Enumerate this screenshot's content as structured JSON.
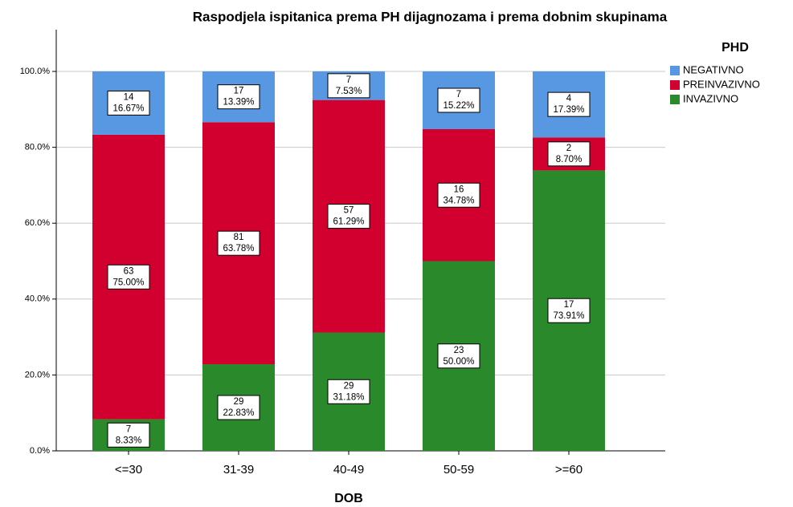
{
  "chart_data": {
    "type": "stacked_bar",
    "title": "Raspodjela ispitanica prema PH dijagnozama i prema dobnim skupinama",
    "xlabel": "DOB",
    "legend_title": "PHD",
    "legend": "top-right",
    "grid": true,
    "categories": [
      "<=30",
      "31-39",
      "40-49",
      "50-59",
      ">=60"
    ],
    "ylim": [
      0,
      111
    ],
    "yticks": [
      {
        "value": 0,
        "label": "0.0%"
      },
      {
        "value": 20,
        "label": "20.0%"
      },
      {
        "value": 40,
        "label": "40.0%"
      },
      {
        "value": 60,
        "label": "60.0%"
      },
      {
        "value": 80,
        "label": "80.0%"
      },
      {
        "value": 100,
        "label": "100.0%"
      }
    ],
    "series": [
      {
        "name": "INVAZIVNO",
        "color": "#2a892a",
        "values": [
          8.33,
          22.83,
          31.18,
          50.0,
          73.91
        ],
        "value_labels": [
          "8.33%",
          "22.83%",
          "31.18%",
          "50.00%",
          "73.91%"
        ],
        "counts": [
          7,
          29,
          29,
          23,
          17
        ]
      },
      {
        "name": "PREINVAZIVNO",
        "color": "#d2002f",
        "values": [
          75.0,
          63.78,
          61.29,
          34.78,
          8.7
        ],
        "value_labels": [
          "75.00%",
          "63.78%",
          "61.29%",
          "34.78%",
          "8.70%"
        ],
        "counts": [
          63,
          81,
          57,
          16,
          2
        ]
      },
      {
        "name": "NEGATIVNO",
        "color": "#5898e2",
        "values": [
          16.67,
          13.39,
          7.53,
          15.22,
          17.39
        ],
        "value_labels": [
          "16.67%",
          "13.39%",
          "7.53%",
          "15.22%",
          "17.39%"
        ],
        "counts": [
          14,
          17,
          7,
          7,
          4
        ]
      }
    ]
  }
}
